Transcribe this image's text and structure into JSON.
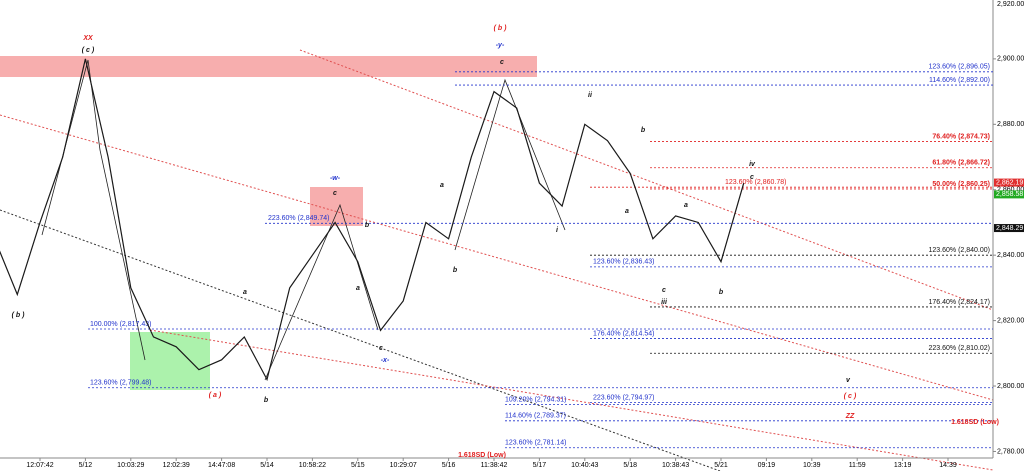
{
  "chart_data": {
    "type": "line",
    "categories": [
      null,
      null,
      "12:07:42",
      null,
      "5/12",
      null,
      "10:03:29",
      null,
      "12:02:39",
      null,
      "14:47:08",
      null,
      "5/14",
      null,
      "10:58:22",
      null,
      "5/15",
      null,
      "10:29:07",
      null,
      "5/16",
      null,
      "11:38:42",
      null,
      "5/17",
      null,
      "10:40:43",
      null,
      "5/18",
      null,
      "10:38:43",
      null,
      "5/21",
      null,
      "09:19",
      null,
      "10:39",
      null,
      "11:59",
      null,
      "13:19",
      null,
      "14:39",
      null,
      null
    ],
    "series": [
      {
        "color": "#1a1a1a",
        "values": [
          2845,
          2828,
          2850,
          2870,
          2900,
          2870,
          2830,
          2815,
          2812,
          2805,
          2808,
          2815,
          2802,
          2830,
          2840,
          2850,
          2838,
          2817,
          2826,
          2850,
          2845,
          2870,
          2890,
          2885,
          2862,
          2855,
          2880,
          2875,
          2865,
          2845,
          2852,
          2850,
          2838,
          2862,
          null,
          null,
          null,
          null,
          null,
          null,
          null,
          null,
          null,
          null,
          null
        ]
      }
    ],
    "ylim": [
      2778,
      2918
    ],
    "yticks": [
      {
        "value": 2780,
        "label": "2,780.00"
      },
      {
        "value": 2800,
        "label": "2,800.00"
      },
      {
        "value": 2820,
        "label": "2,820.00"
      },
      {
        "value": 2840,
        "label": "2,840.00"
      },
      {
        "value": 2860,
        "label": "2,860.00"
      },
      {
        "value": 2880,
        "label": "2,880.00"
      },
      {
        "value": 2900,
        "label": "2,900.00"
      },
      {
        "value": 2920,
        "label": "2,920.00"
      }
    ],
    "price_markers": [
      {
        "value": 2862.19,
        "label": "2,862.19",
        "color": "#e03030"
      },
      {
        "value": 2858.58,
        "label": "2,858.58",
        "color": "#22aa22"
      },
      {
        "value": 2848.29,
        "label": "2,848.29",
        "color": "#111111"
      }
    ],
    "levels": [
      {
        "value": 2896.05,
        "label": "123.60% (2,896.05)",
        "color": "#2233cc"
      },
      {
        "value": 2892.0,
        "label": "114.60% (2,892.00)",
        "color": "#2233cc"
      },
      {
        "value": 2874.73,
        "label": "76.40% (2,874.73)",
        "color": "#e02020"
      },
      {
        "value": 2866.72,
        "label": "61.80% (2,866.72)",
        "color": "#e02020"
      },
      {
        "value": 2860.25,
        "label": "50.00% (2,860.25)",
        "color": "#e02020"
      },
      {
        "value": 2860.78,
        "label": "123.60% (2,860.78)",
        "color": "#e02020"
      },
      {
        "value": 2849.74,
        "label": "223.60% (2,849.74)",
        "color": "#2233cc"
      },
      {
        "value": 2840.0,
        "label": "123.60% (2,840.00)",
        "color": "#111111"
      },
      {
        "value": 2836.43,
        "label": "123.60% (2,836.43)",
        "color": "#2233cc"
      },
      {
        "value": 2824.17,
        "label": "176.40% (2,824.17)",
        "color": "#111111"
      },
      {
        "value": 2817.43,
        "label": "100.00% (2,817.43)",
        "color": "#2233cc"
      },
      {
        "value": 2814.54,
        "label": "176.40% (2,814.54)",
        "color": "#2233cc"
      },
      {
        "value": 2810.02,
        "label": "223.60% (2,810.02)",
        "color": "#111111"
      },
      {
        "value": 2799.48,
        "label": "123.60% (2,799.48)",
        "color": "#2233cc"
      },
      {
        "value": 2794.97,
        "label": "223.60% (2,794.97)",
        "color": "#2233cc"
      },
      {
        "value": 2794.31,
        "label": "109.20% (2,794.31)",
        "color": "#2233cc"
      },
      {
        "value": 2789.37,
        "label": "114.60% (2,789.37)",
        "color": "#2233cc"
      },
      {
        "value": 2781.14,
        "label": "123.60% (2,781.14)",
        "color": "#2233cc"
      }
    ],
    "annotations": [
      {
        "text": "XX",
        "color": "#e02020"
      },
      {
        "text": "( c )",
        "color": "#111111"
      },
      {
        "text": "( b )",
        "color": "#e02020"
      },
      {
        "text": "-y-",
        "color": "#2233cc"
      },
      {
        "text": "c",
        "color": "#111111"
      },
      {
        "text": "( b )",
        "color": "#111111"
      },
      {
        "text": "-w-",
        "color": "#2233cc"
      },
      {
        "text": "c",
        "color": "#111111"
      },
      {
        "text": "b",
        "color": "#111111"
      },
      {
        "text": "a",
        "color": "#111111"
      },
      {
        "text": "a",
        "color": "#111111"
      },
      {
        "text": "b",
        "color": "#111111"
      },
      {
        "text": "a",
        "color": "#111111"
      },
      {
        "text": "( a )",
        "color": "#e02020"
      },
      {
        "text": "b",
        "color": "#111111"
      },
      {
        "text": "c",
        "color": "#111111"
      },
      {
        "text": "-x-",
        "color": "#2233cc"
      },
      {
        "text": "ii",
        "color": "#111111"
      },
      {
        "text": "i",
        "color": "#111111"
      },
      {
        "text": "b",
        "color": "#111111"
      },
      {
        "text": "a",
        "color": "#111111"
      },
      {
        "text": "iv",
        "color": "#111111"
      },
      {
        "text": "c",
        "color": "#111111"
      },
      {
        "text": "a",
        "color": "#111111"
      },
      {
        "text": "c",
        "color": "#111111"
      },
      {
        "text": "iii",
        "color": "#111111"
      },
      {
        "text": "b",
        "color": "#111111"
      },
      {
        "text": "v",
        "color": "#111111"
      },
      {
        "text": "( c )",
        "color": "#e02020"
      },
      {
        "text": "ZZ",
        "color": "#e02020"
      },
      {
        "text": "1.618SD (Low)",
        "color": "#e02020"
      },
      {
        "text": "1.618SD (Low)",
        "color": "#e02020"
      }
    ]
  }
}
